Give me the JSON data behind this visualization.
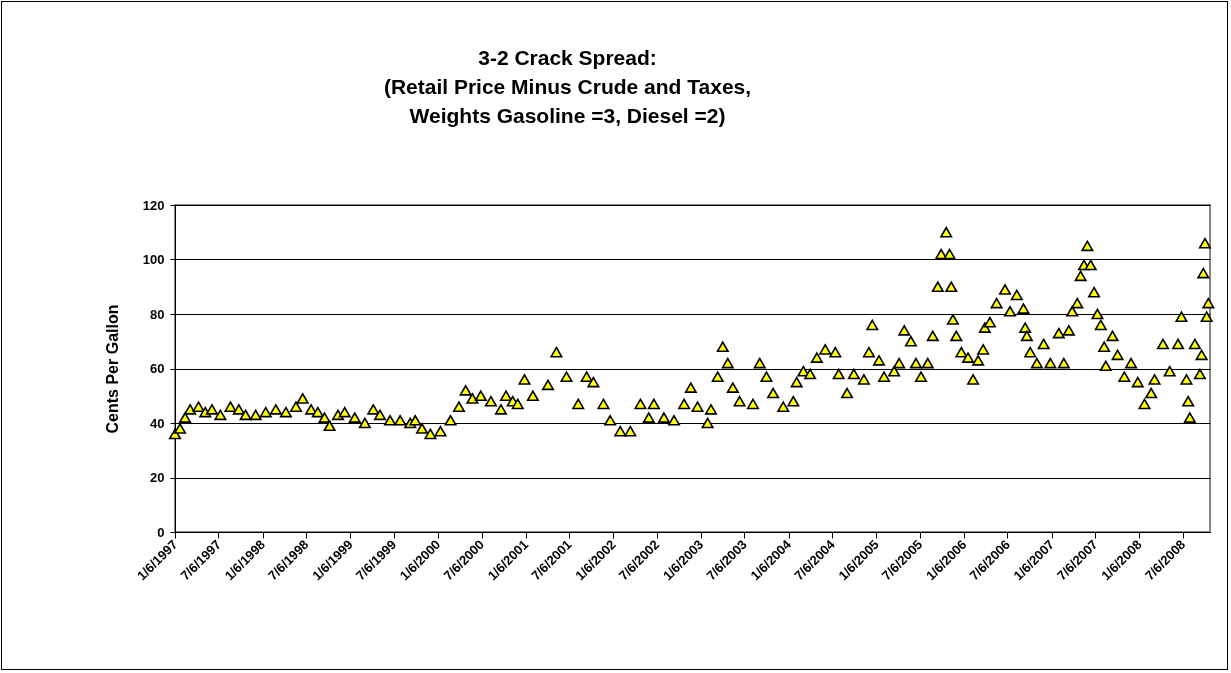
{
  "chart_data": {
    "type": "scatter",
    "title": "3-2 Crack Spread:\n(Retail Price Minus Crude and Taxes,\nWeights Gasoline =3, Diesel =2)",
    "ylabel": "Cents Per Gallon",
    "x": [
      "1997-01-06",
      "1997-01-27",
      "1997-02-17",
      "1997-03-10",
      "1997-04-14",
      "1997-05-12",
      "1997-06-09",
      "1997-07-14",
      "1997-08-25",
      "1997-09-29",
      "1997-10-27",
      "1997-12-08",
      "1998-01-19",
      "1998-03-02",
      "1998-04-13",
      "1998-05-25",
      "1998-06-22",
      "1998-07-27",
      "1998-08-24",
      "1998-09-21",
      "1998-10-12",
      "1998-11-16",
      "1998-12-14",
      "1999-01-25",
      "1999-03-08",
      "1999-04-12",
      "1999-05-10",
      "1999-06-21",
      "1999-08-02",
      "1999-09-13",
      "1999-10-04",
      "1999-11-01",
      "1999-12-06",
      "2000-01-17",
      "2000-02-28",
      "2000-04-03",
      "2000-05-01",
      "2000-05-29",
      "2000-07-03",
      "2000-08-14",
      "2000-09-25",
      "2000-10-16",
      "2000-11-13",
      "2000-12-04",
      "2001-01-01",
      "2001-02-05",
      "2001-04-09",
      "2001-05-14",
      "2001-06-25",
      "2001-08-13",
      "2001-09-17",
      "2001-10-15",
      "2001-11-26",
      "2001-12-24",
      "2002-02-04",
      "2002-03-18",
      "2002-04-29",
      "2002-06-03",
      "2002-06-24",
      "2002-08-05",
      "2002-09-16",
      "2002-10-28",
      "2002-11-25",
      "2002-12-23",
      "2003-02-03",
      "2003-02-17",
      "2003-03-17",
      "2003-04-07",
      "2003-04-28",
      "2003-05-19",
      "2003-06-16",
      "2003-08-11",
      "2003-09-08",
      "2003-10-06",
      "2003-11-03",
      "2003-12-15",
      "2004-01-26",
      "2004-02-09",
      "2004-03-08",
      "2004-04-05",
      "2004-05-03",
      "2004-06-07",
      "2004-07-19",
      "2004-08-02",
      "2004-09-06",
      "2004-10-04",
      "2004-11-15",
      "2004-12-06",
      "2004-12-20",
      "2005-01-17",
      "2005-02-07",
      "2005-03-21",
      "2005-04-11",
      "2005-05-02",
      "2005-05-30",
      "2005-06-20",
      "2005-07-11",
      "2005-08-08",
      "2005-08-29",
      "2005-09-19",
      "2005-10-03",
      "2005-10-24",
      "2005-11-07",
      "2005-11-14",
      "2005-11-21",
      "2005-12-05",
      "2005-12-26",
      "2006-01-23",
      "2006-02-13",
      "2006-03-06",
      "2006-03-27",
      "2006-04-03",
      "2006-04-24",
      "2006-05-22",
      "2006-06-26",
      "2006-07-17",
      "2006-08-14",
      "2006-09-11",
      "2006-09-18",
      "2006-09-25",
      "2006-10-09",
      "2006-11-06",
      "2006-12-04",
      "2007-01-01",
      "2007-02-05",
      "2007-02-26",
      "2007-03-19",
      "2007-04-02",
      "2007-04-23",
      "2007-05-07",
      "2007-05-21",
      "2007-06-04",
      "2007-06-18",
      "2007-07-02",
      "2007-07-16",
      "2007-07-30",
      "2007-08-13",
      "2007-08-20",
      "2007-09-17",
      "2007-10-08",
      "2007-11-05",
      "2007-12-03",
      "2007-12-31",
      "2008-01-28",
      "2008-02-25",
      "2008-03-10",
      "2008-04-14",
      "2008-05-12",
      "2008-06-16",
      "2008-06-30",
      "2008-07-21",
      "2008-07-28",
      "2008-08-04",
      "2008-08-25",
      "2008-09-15",
      "2008-09-22",
      "2008-09-29",
      "2008-10-06",
      "2008-10-13",
      "2008-10-20"
    ],
    "values": [
      36,
      38,
      42,
      45,
      46,
      44,
      45,
      43,
      46,
      45,
      43,
      43,
      44,
      45,
      44,
      46,
      49,
      45,
      44,
      42,
      39,
      43,
      44,
      42,
      40,
      45,
      43,
      41,
      41,
      40,
      41,
      38,
      36,
      37,
      41,
      46,
      52,
      49,
      50,
      48,
      45,
      50,
      48,
      47,
      56,
      50,
      54,
      66,
      57,
      47,
      57,
      55,
      47,
      41,
      37,
      37,
      47,
      42,
      47,
      42,
      41,
      47,
      53,
      46,
      40,
      45,
      57,
      68,
      62,
      53,
      48,
      47,
      62,
      57,
      51,
      46,
      48,
      55,
      59,
      58,
      64,
      67,
      66,
      58,
      51,
      58,
      56,
      66,
      76,
      63,
      57,
      59,
      62,
      74,
      70,
      62,
      57,
      62,
      72,
      90,
      102,
      110,
      102,
      90,
      78,
      72,
      66,
      64,
      56,
      63,
      67,
      75,
      77,
      84,
      89,
      81,
      87,
      82,
      75,
      72,
      66,
      62,
      69,
      62,
      73,
      62,
      74,
      81,
      84,
      94,
      98,
      105,
      98,
      88,
      80,
      76,
      68,
      61,
      72,
      65,
      57,
      62,
      55,
      47,
      51,
      56,
      69,
      59,
      69,
      79,
      56,
      48,
      42,
      69,
      58,
      65,
      95,
      106,
      79,
      84
    ],
    "color": "#ffff00",
    "marker": "triangle",
    "xlim": [
      "1997-01-06",
      "2008-10-27"
    ],
    "xticks": [
      {
        "value": "1997-01-06",
        "label": "1/6/1997"
      },
      {
        "value": "1997-07-06",
        "label": "7/6/1997"
      },
      {
        "value": "1998-01-06",
        "label": "1/6/1998"
      },
      {
        "value": "1998-07-06",
        "label": "7/6/1998"
      },
      {
        "value": "1999-01-06",
        "label": "1/6/1999"
      },
      {
        "value": "1999-07-06",
        "label": "7/6/1999"
      },
      {
        "value": "2000-01-06",
        "label": "1/6/2000"
      },
      {
        "value": "2000-07-06",
        "label": "7/6/2000"
      },
      {
        "value": "2001-01-06",
        "label": "1/6/2001"
      },
      {
        "value": "2001-07-06",
        "label": "7/6/2001"
      },
      {
        "value": "2002-01-06",
        "label": "1/6/2002"
      },
      {
        "value": "2002-07-06",
        "label": "7/6/2002"
      },
      {
        "value": "2003-01-06",
        "label": "1/6/2003"
      },
      {
        "value": "2003-07-06",
        "label": "7/6/2003"
      },
      {
        "value": "2004-01-06",
        "label": "1/6/2004"
      },
      {
        "value": "2004-07-06",
        "label": "7/6/2004"
      },
      {
        "value": "2005-01-06",
        "label": "1/6/2005"
      },
      {
        "value": "2005-07-06",
        "label": "7/6/2005"
      },
      {
        "value": "2006-01-06",
        "label": "1/6/2006"
      },
      {
        "value": "2006-07-06",
        "label": "7/6/2006"
      },
      {
        "value": "2007-01-06",
        "label": "1/6/2007"
      },
      {
        "value": "2007-07-06",
        "label": "7/6/2007"
      },
      {
        "value": "2008-01-06",
        "label": "1/6/2008"
      },
      {
        "value": "2008-07-06",
        "label": "7/6/2008"
      }
    ],
    "ylim": [
      0,
      120
    ],
    "yticks": [
      0,
      20,
      40,
      60,
      80,
      100,
      120
    ],
    "grid": "y"
  }
}
